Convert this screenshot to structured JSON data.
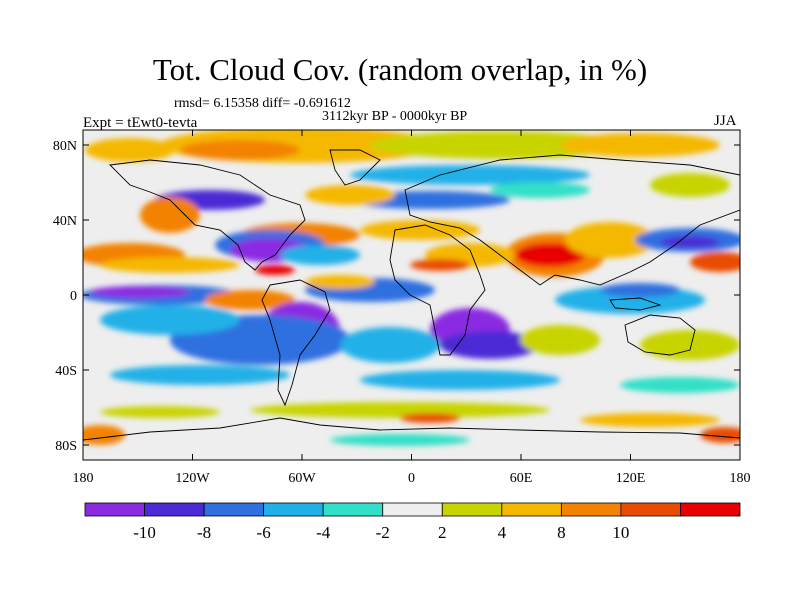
{
  "title": "Tot. Cloud Cov. (random overlap, in %)",
  "stats": "rmsd= 6.15358 diff= -0.691612",
  "period": "3112kyr BP - 0000kyr BP",
  "experiment": "Expt = tEwt0-tevta",
  "season": "JJA",
  "lat_ticks": [
    {
      "label": "80N",
      "value": 80
    },
    {
      "label": "40N",
      "value": 40
    },
    {
      "label": "0",
      "value": 0
    },
    {
      "label": "40S",
      "value": -40
    },
    {
      "label": "80S",
      "value": -80
    }
  ],
  "lon_ticks": [
    {
      "label": "180",
      "value": -180
    },
    {
      "label": "120W",
      "value": -120
    },
    {
      "label": "60W",
      "value": -60
    },
    {
      "label": "0",
      "value": 0
    },
    {
      "label": "60E",
      "value": 60
    },
    {
      "label": "120E",
      "value": 120
    },
    {
      "label": "180",
      "value": 180
    }
  ],
  "colorbar": {
    "colors": [
      "#8a2be2",
      "#4b29d6",
      "#2f6fe0",
      "#20b0e8",
      "#30e0c8",
      "#eeeeee",
      "#c8d400",
      "#f5b800",
      "#f38200",
      "#e94c00",
      "#e80000"
    ],
    "labels": [
      "-10",
      "-8",
      "-6",
      "-4",
      "-2",
      "2",
      "4",
      "8",
      "10"
    ]
  },
  "field_levels": [
    -10,
    -8,
    -6,
    -4,
    -2,
    2,
    4,
    8,
    10
  ]
}
